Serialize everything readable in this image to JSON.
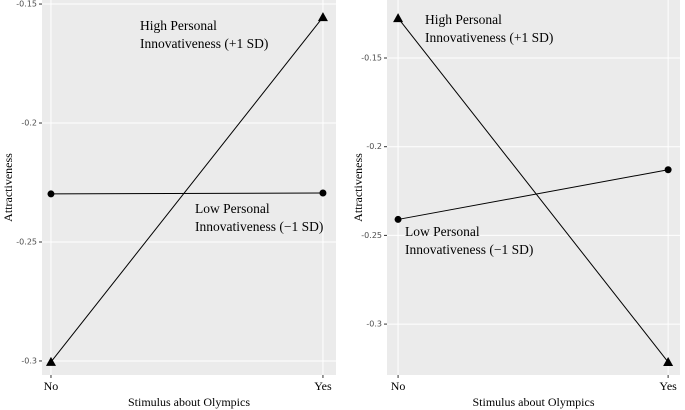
{
  "chart_data": [
    {
      "type": "line",
      "x_label": "Stimulus about Olympics",
      "y_label": "Attractiveness",
      "x": [
        0,
        1
      ],
      "xlim": [
        -0.033,
        1.048
      ],
      "xticks": [
        {
          "value": 0,
          "label": "No"
        },
        {
          "value": 1,
          "label": "Yes"
        }
      ],
      "ylim": [
        -0.3059,
        -0.1483
      ],
      "yticks": [
        -0.15,
        -0.2,
        -0.25,
        -0.3
      ],
      "grid": true,
      "series": [
        {
          "name": "High Personal Innovativeness (+1 SD)",
          "marker": "triangle",
          "color": "#000000",
          "values": [
            -0.3004,
            -0.1555
          ]
        },
        {
          "name": "Low Personal Innovativeness (−1 SD)",
          "marker": "circle",
          "color": "#000000",
          "values": [
            -0.2298,
            -0.2294
          ]
        }
      ],
      "annotations": [
        [
          "High Personal",
          "Innovativeness (+1 SD)"
        ],
        [
          "Low Personal",
          "Innovativeness (−1 SD)"
        ]
      ]
    },
    {
      "type": "line",
      "x_label": "Stimulus about Olympics",
      "y_label": "Attractiveness",
      "x": [
        0,
        1
      ],
      "xlim": [
        -0.041,
        1.044
      ],
      "xticks": [
        {
          "value": 0,
          "label": "No"
        },
        {
          "value": 1,
          "label": "Yes"
        }
      ],
      "ylim": [
        -0.3287,
        -0.1173
      ],
      "yticks": [
        -0.15,
        -0.2,
        -0.25,
        -0.3
      ],
      "grid": true,
      "series": [
        {
          "name": "High Personal Innovativeness (+1 SD)",
          "marker": "triangle",
          "color": "#000000",
          "values": [
            -0.1275,
            -0.3214
          ]
        },
        {
          "name": "Low Personal Innovativeness (−1 SD)",
          "marker": "circle",
          "color": "#000000",
          "values": [
            -0.241,
            -0.213
          ]
        }
      ],
      "annotations": [
        [
          "High Personal",
          "Innovativeness (+1 SD)"
        ],
        [
          "Low Personal",
          "Innovativeness (−1 SD)"
        ]
      ]
    }
  ]
}
